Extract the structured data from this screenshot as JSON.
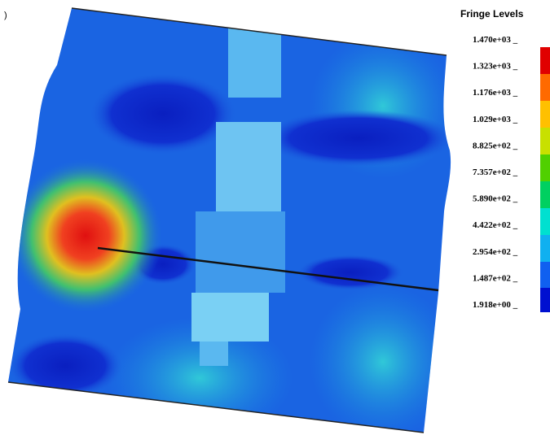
{
  "corner_mark": ")",
  "legend": {
    "title": "Fringe Levels",
    "levels": [
      "1.470e+03 _",
      "1.323e+03 _",
      "1.176e+03 _",
      "1.029e+03 _",
      "8.825e+02 _",
      "7.357e+02 _",
      "5.890e+02 _",
      "4.422e+02 _",
      "2.954e+02 _",
      "1.487e+02 _",
      "1.918e+00 _"
    ]
  }
}
